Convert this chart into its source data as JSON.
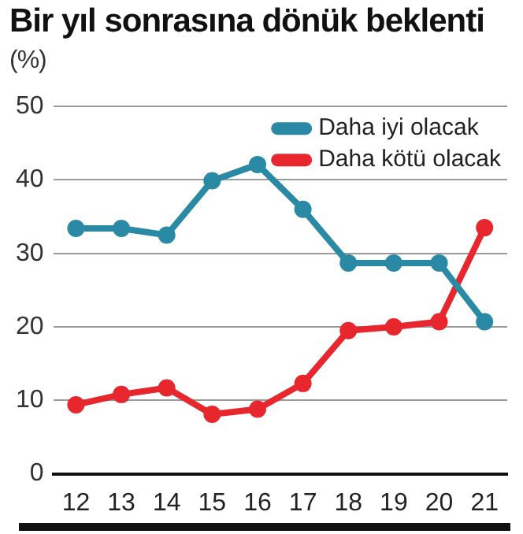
{
  "chart_data": {
    "type": "line",
    "title": "Bir yıl sonrasına dönük beklenti",
    "subtitle": "(%)",
    "categories": [
      "12",
      "13",
      "14",
      "15",
      "16",
      "17",
      "18",
      "19",
      "20",
      "21"
    ],
    "series": [
      {
        "name": "Daha iyi olacak",
        "color": "#2a8aa6",
        "values": [
          33.4,
          33.4,
          32.5,
          39.9,
          42.1,
          36.0,
          28.7,
          28.7,
          28.7,
          20.7
        ]
      },
      {
        "name": "Daha kötü olacak",
        "color": "#e8262d",
        "values": [
          9.4,
          10.8,
          11.7,
          8.1,
          8.8,
          12.3,
          19.5,
          20.0,
          20.7,
          33.5
        ]
      }
    ],
    "ylim": [
      0,
      50
    ],
    "yticks": [
      0,
      10,
      20,
      30,
      40,
      50
    ],
    "grid": "y",
    "legend": "top right",
    "marker": "circle",
    "line_style": "solid"
  }
}
